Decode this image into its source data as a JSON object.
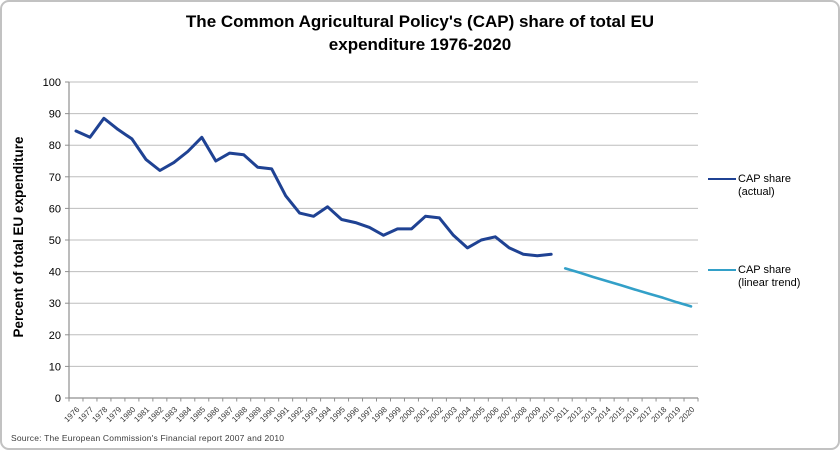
{
  "title": {
    "line1": "The Common Agricultural Policy's (CAP) share of total EU",
    "line2": "expenditure 1976-2020"
  },
  "y_axis_title": "Percent of total EU expenditure",
  "source": "Source: The European Commission's Financial report 2007 and 2010",
  "legend": [
    {
      "label": "CAP share (actual)",
      "color": "#1F4293"
    },
    {
      "label": "CAP share (linear trend)",
      "color": "#33A0C8"
    }
  ],
  "chart_data": {
    "type": "line",
    "title": "The Common Agricultural Policy's (CAP) share of total EU expenditure 1976-2020",
    "ylabel": "Percent of total EU expenditure",
    "xlabel": "",
    "ylim": [
      0,
      100
    ],
    "yticks": [
      0,
      10,
      20,
      30,
      40,
      50,
      60,
      70,
      80,
      90,
      100
    ],
    "grid": "horizontal",
    "legend_position": "right",
    "x": [
      1976,
      1977,
      1978,
      1979,
      1980,
      1981,
      1982,
      1983,
      1984,
      1985,
      1986,
      1987,
      1988,
      1989,
      1990,
      1991,
      1992,
      1993,
      1994,
      1995,
      1996,
      1997,
      1998,
      1999,
      2000,
      2001,
      2002,
      2003,
      2004,
      2005,
      2006,
      2007,
      2008,
      2009,
      2010,
      2011,
      2012,
      2013,
      2014,
      2015,
      2016,
      2017,
      2018,
      2019,
      2020
    ],
    "series": [
      {
        "name": "CAP share (actual)",
        "color": "#1F4293",
        "stroke_width": 3,
        "x_start": 1976,
        "values": [
          84.5,
          82.5,
          88.5,
          85,
          82,
          75.5,
          72,
          74.5,
          78,
          82.5,
          75,
          77.5,
          77,
          73,
          72.5,
          64,
          58.5,
          57.5,
          60.5,
          56.5,
          55.5,
          54,
          51.5,
          53.5,
          53.5,
          57.5,
          57,
          51.5,
          47.5,
          50,
          51,
          47.5,
          45.5,
          45,
          45.5
        ]
      },
      {
        "name": "CAP share (linear trend)",
        "color": "#33A0C8",
        "stroke_width": 2.6,
        "x_start": 2011,
        "values": [
          41,
          39.7,
          38.3,
          37,
          35.7,
          34.3,
          33,
          31.7,
          30.3,
          29
        ]
      }
    ]
  }
}
